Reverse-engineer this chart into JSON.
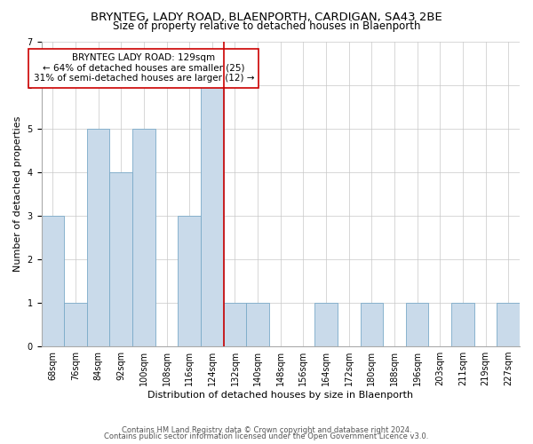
{
  "title": "BRYNTEG, LADY ROAD, BLAENPORTH, CARDIGAN, SA43 2BE",
  "subtitle": "Size of property relative to detached houses in Blaenporth",
  "xlabel": "Distribution of detached houses by size in Blaenporth",
  "ylabel": "Number of detached properties",
  "footnote1": "Contains HM Land Registry data © Crown copyright and database right 2024.",
  "footnote2": "Contains public sector information licensed under the Open Government Licence v3.0.",
  "bin_labels": [
    "68sqm",
    "76sqm",
    "84sqm",
    "92sqm",
    "100sqm",
    "108sqm",
    "116sqm",
    "124sqm",
    "132sqm",
    "140sqm",
    "148sqm",
    "156sqm",
    "164sqm",
    "172sqm",
    "180sqm",
    "188sqm",
    "196sqm",
    "203sqm",
    "211sqm",
    "219sqm",
    "227sqm"
  ],
  "counts": [
    3,
    1,
    5,
    4,
    5,
    0,
    3,
    6,
    1,
    1,
    0,
    0,
    1,
    0,
    1,
    0,
    1,
    0,
    1,
    0,
    1
  ],
  "n_bins": 21,
  "bar_color": "#c9daea",
  "bar_edge_color": "#7aaac8",
  "property_line_color": "#cc0000",
  "property_bin_index": 7,
  "annotation_line1": "BRYNTEG LADY ROAD: 129sqm",
  "annotation_line2": "← 64% of detached houses are smaller (25)",
  "annotation_line3": "31% of semi-detached houses are larger (12) →",
  "annotation_box_color": "#ffffff",
  "annotation_box_edge_color": "#cc0000",
  "ylim": [
    0,
    7
  ],
  "yticks": [
    0,
    1,
    2,
    3,
    4,
    5,
    6,
    7
  ],
  "background_color": "#ffffff",
  "grid_color": "#c8c8c8",
  "title_fontsize": 9.5,
  "subtitle_fontsize": 8.5,
  "xlabel_fontsize": 8,
  "ylabel_fontsize": 8,
  "tick_fontsize": 7,
  "annotation_fontsize": 7.5,
  "footnote_fontsize": 6
}
